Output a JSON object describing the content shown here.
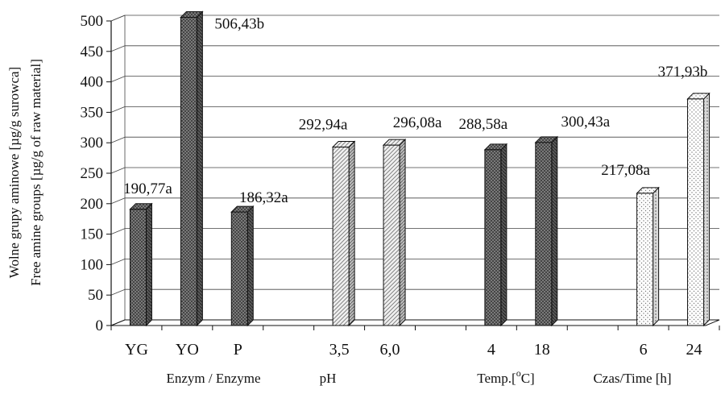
{
  "chart_data": {
    "type": "bar",
    "ylabel_pl": "Wolne grupy aminowe [µg/g surowca]",
    "ylabel_en": "Free amine groups [µg/g of raw material]",
    "ylim": [
      0,
      500
    ],
    "yticks": [
      0,
      50,
      100,
      150,
      200,
      250,
      300,
      350,
      400,
      450,
      500
    ],
    "grid": true,
    "categories": [
      "YG",
      "YO",
      "P",
      "",
      "3,5",
      "6,0",
      "",
      "4",
      "18",
      "",
      "6",
      "24"
    ],
    "values": [
      190.77,
      506.43,
      186.32,
      null,
      292.94,
      296.08,
      null,
      288.58,
      300.43,
      null,
      217.08,
      371.93
    ],
    "data_labels": [
      "190,77a",
      "506,43b",
      "186,32a",
      "",
      "292,94a",
      "296,08a",
      "",
      "288,58a",
      "300,43a",
      "",
      "217,08a",
      "371,93b"
    ],
    "groups": [
      {
        "label": "Enzym / Enzyme",
        "categories": [
          "YG",
          "YO",
          "P"
        ],
        "pattern": "crosshatch-dark"
      },
      {
        "label": "pH",
        "categories": [
          "3,5",
          "6,0"
        ],
        "pattern": "diagonal-light"
      },
      {
        "label": "Temp.[°C]",
        "categories": [
          "4",
          "18"
        ],
        "pattern": "crosshatch-dark"
      },
      {
        "label": "Czas/Time [h]",
        "categories": [
          "6",
          "24"
        ],
        "pattern": "dotted-light"
      }
    ]
  }
}
